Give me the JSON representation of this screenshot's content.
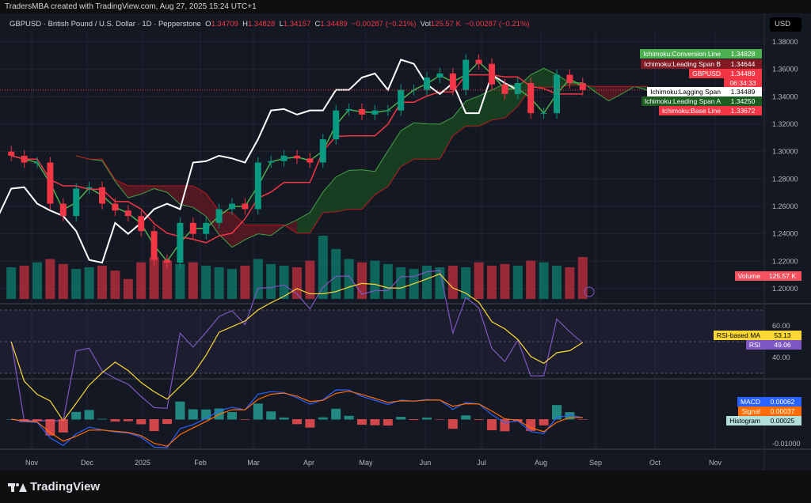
{
  "top_bar": {
    "credit": "TradersMBA created with TradingView.com, Aug 27, 2025 15:24 UTC+1"
  },
  "legend": {
    "symbol": "GBPUSD · British Pound / U.S. Dollar · 1D · Pepperstone",
    "o_label": "O",
    "o": "1.34709",
    "h_label": "H",
    "h": "1.34828",
    "l_label": "L",
    "l": "1.34157",
    "c_label": "C",
    "c": "1.34489",
    "change": "−0.00287 (−0.21%)",
    "vol_label": "Vol",
    "vol": "125.57 K",
    "vol_change": "−0.00287 (−0.21%)"
  },
  "currency": "USD",
  "price_tags": [
    {
      "label": "Ichimoku:Conversion Line",
      "value": "1.34828",
      "color": "#4caf50",
      "text": "#ffffff"
    },
    {
      "label": "Ichimoku:Leading Span B",
      "value": "1.34644",
      "color": "#801922",
      "text": "#ffffff"
    },
    {
      "label": "GBPUSD",
      "value": "1.34489",
      "extra": "06:34:33",
      "color": "#f23645",
      "text": "#ffffff"
    },
    {
      "label": "Ichimoku:Lagging Span",
      "value": "1.34489",
      "color": "#ffffff",
      "text": "#000000"
    },
    {
      "label": "Ichimoku:Leading Span A",
      "value": "1.34250",
      "color": "#1b5e20",
      "text": "#ffffff"
    },
    {
      "label": "Ichimoku:Base Line",
      "value": "1.33672",
      "color": "#f23645",
      "text": "#ffffff"
    }
  ],
  "volume_tag": {
    "label": "Volume",
    "value": "125.57 K",
    "color": "#f7525f"
  },
  "rsi_tags": [
    {
      "label": "RSI-based MA",
      "value": "53.13",
      "color": "#fdd835",
      "text": "#000000"
    },
    {
      "label": "RSI",
      "value": "49.06",
      "color": "#7e57c2",
      "text": "#ffffff"
    }
  ],
  "macd_tags": [
    {
      "label": "MACD",
      "value": "0.00062",
      "color": "#2962ff",
      "text": "#ffffff"
    },
    {
      "label": "Signal",
      "value": "0.00037",
      "color": "#ff6d00",
      "text": "#ffffff"
    },
    {
      "label": "Histogram",
      "value": "0.00025",
      "color": "#b2dfdb",
      "text": "#000000"
    }
  ],
  "footer": {
    "brand": "TradingView"
  },
  "colors": {
    "up": "#089981",
    "down": "#f23645",
    "conversion": "#4caf50",
    "base": "#f23645",
    "lagging": "#ffffff",
    "cloud_up": "#1b5e20",
    "cloud_down": "#801922",
    "rsi": "#7e57c2",
    "rsi_ma": "#fdd835",
    "macd": "#2962ff",
    "signal": "#ff6d00"
  },
  "chart_data": {
    "type": "candlestick",
    "interval_shown": "weekly approximation of daily chart",
    "week_starts": [
      "2024-10-21",
      "2024-10-28",
      "2024-11-04",
      "2024-11-11",
      "2024-11-18",
      "2024-11-25",
      "2024-12-02",
      "2024-12-09",
      "2024-12-16",
      "2024-12-23",
      "2024-12-30",
      "2025-01-06",
      "2025-01-13",
      "2025-01-20",
      "2025-01-27",
      "2025-02-03",
      "2025-02-10",
      "2025-02-17",
      "2025-02-24",
      "2025-03-03",
      "2025-03-10",
      "2025-03-17",
      "2025-03-24",
      "2025-03-31",
      "2025-04-07",
      "2025-04-14",
      "2025-04-21",
      "2025-04-28",
      "2025-05-05",
      "2025-05-12",
      "2025-05-19",
      "2025-05-26",
      "2025-06-02",
      "2025-06-09",
      "2025-06-16",
      "2025-06-23",
      "2025-06-30",
      "2025-07-07",
      "2025-07-14",
      "2025-07-21",
      "2025-07-28",
      "2025-08-04",
      "2025-08-11",
      "2025-08-18",
      "2025-08-25"
    ],
    "close": [
      1.297,
      1.292,
      1.292,
      1.262,
      1.253,
      1.273,
      1.274,
      1.262,
      1.257,
      1.253,
      1.242,
      1.221,
      1.219,
      1.248,
      1.24,
      1.248,
      1.258,
      1.262,
      1.258,
      1.292,
      1.293,
      1.297,
      1.295,
      1.292,
      1.309,
      1.33,
      1.331,
      1.327,
      1.33,
      1.33,
      1.345,
      1.345,
      1.354,
      1.357,
      1.345,
      1.367,
      1.364,
      1.349,
      1.342,
      1.35,
      1.328,
      1.328,
      1.356,
      1.35,
      1.34489
    ],
    "volume_k": [
      95,
      100,
      110,
      120,
      105,
      90,
      95,
      100,
      85,
      60,
      110,
      125,
      115,
      105,
      110,
      100,
      95,
      90,
      100,
      120,
      105,
      100,
      95,
      115,
      190,
      150,
      120,
      110,
      115,
      105,
      95,
      90,
      100,
      95,
      100,
      95,
      110,
      100,
      105,
      100,
      115,
      110,
      100,
      95,
      126
    ],
    "x_ticks": [
      "Nov",
      "Dec",
      "2025",
      "Feb",
      "Mar",
      "Apr",
      "May",
      "Jun",
      "Jul",
      "Aug",
      "Sep",
      "Oct",
      "Nov"
    ],
    "y_ticks": [
      "1.38000",
      "1.36000",
      "1.34000",
      "1.32000",
      "1.30000",
      "1.28000",
      "1.26000",
      "1.24000",
      "1.22000",
      "1.20000"
    ],
    "rsi_ticks": [
      "60.00",
      "40.00"
    ],
    "macd_ticks": [
      "-0.01000"
    ],
    "ylim": [
      1.195,
      1.388
    ]
  }
}
